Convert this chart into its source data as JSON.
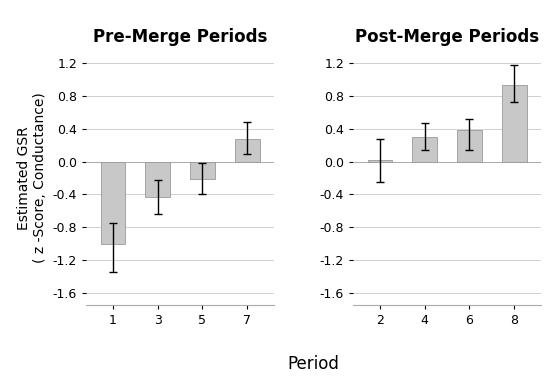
{
  "pre_merge": {
    "title": "Pre-Merge Periods",
    "periods": [
      1,
      3,
      5,
      7
    ],
    "values": [
      -1.01,
      -0.43,
      -0.21,
      0.27
    ],
    "yerr_lower": [
      0.34,
      0.21,
      0.19,
      0.18
    ],
    "yerr_upper": [
      0.26,
      0.21,
      0.19,
      0.21
    ]
  },
  "post_merge": {
    "title": "Post-Merge Periods",
    "periods": [
      2,
      4,
      6,
      8
    ],
    "values": [
      0.02,
      0.3,
      0.39,
      0.93
    ],
    "yerr_lower": [
      0.27,
      0.16,
      0.25,
      0.2
    ],
    "yerr_upper": [
      0.26,
      0.17,
      0.13,
      0.25
    ]
  },
  "bar_color": "#c8c8c8",
  "bar_edgecolor": "#999999",
  "bar_width": 0.55,
  "ylim": [
    -1.75,
    1.35
  ],
  "yticks": [
    -1.6,
    -1.2,
    -0.8,
    -0.4,
    0.0,
    0.4,
    0.8,
    1.2
  ],
  "ylabel": "Estimated GSR\n( z -Score, Conductance)",
  "xlabel": "Period",
  "errorbar_color": "black",
  "errorbar_capsize": 3,
  "errorbar_linewidth": 1.0,
  "background_color": "#ffffff",
  "title_fontsize": 12,
  "label_fontsize": 10,
  "tick_fontsize": 9,
  "grid_color": "#d0d0d0",
  "spine_color": "#aaaaaa"
}
